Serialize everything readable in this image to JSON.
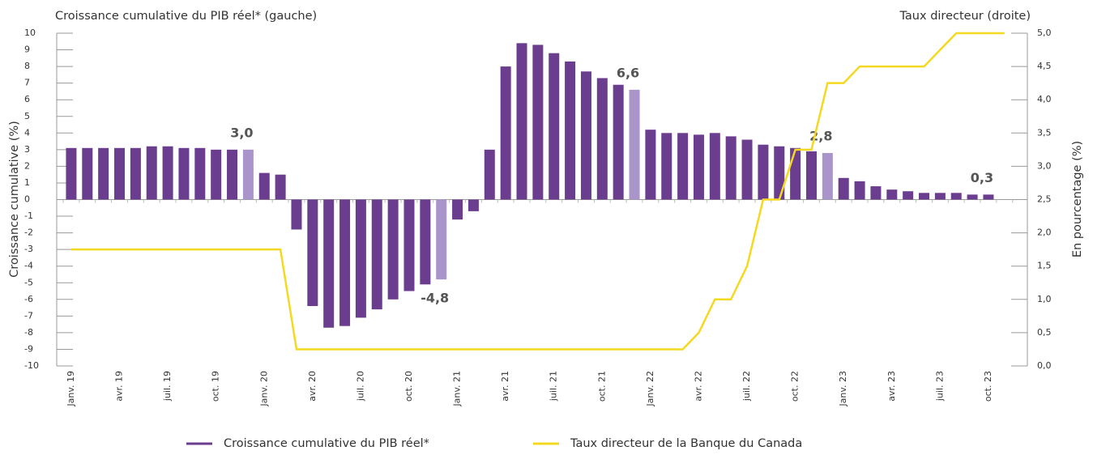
{
  "chart_data": {
    "type": "bar_line",
    "title_left": "Croissance cumulative du PIB réel* (gauche)",
    "title_right": "Taux directeur (droite)",
    "ylabel": "Croissance cumulative (%)",
    "y2label": "En pourcentage (%)",
    "categories": [
      "Janv. 19",
      null,
      null,
      "avr. 19",
      null,
      null,
      "juil. 19",
      null,
      null,
      "oct. 19",
      null,
      null,
      "Janv. 20",
      null,
      null,
      "avr. 20",
      null,
      null,
      "juil. 20",
      null,
      null,
      "oct. 20",
      null,
      null,
      "Janv. 21",
      null,
      null,
      "avr. 21",
      null,
      null,
      "juil. 21",
      null,
      null,
      "oct. 21",
      null,
      null,
      "Janv. 22",
      null,
      null,
      "avr. 22",
      null,
      null,
      "juil. 22",
      null,
      null,
      "oct. 22",
      null,
      null,
      "Janv. 23",
      null,
      null,
      "avr. 23",
      null,
      null,
      "juil. 23",
      null,
      null,
      "oct. 23",
      null,
      null
    ],
    "series": [
      {
        "name": "Croissance cumulative du PIB réel*",
        "kind": "bar",
        "color": "#6b3d8f",
        "values": [
          3.1,
          3.1,
          3.1,
          3.1,
          3.1,
          3.2,
          3.2,
          3.1,
          3.1,
          3.0,
          3.0,
          3.0,
          1.6,
          1.5,
          -1.8,
          -6.4,
          -7.7,
          -7.6,
          -7.1,
          -6.6,
          -6.0,
          -5.5,
          -5.1,
          -4.8,
          -1.2,
          -0.7,
          3.0,
          8.0,
          9.4,
          9.3,
          8.8,
          8.3,
          7.7,
          7.3,
          6.9,
          6.6,
          4.2,
          4.0,
          4.0,
          3.9,
          4.0,
          3.8,
          3.6,
          3.3,
          3.2,
          3.1,
          2.9,
          2.8,
          1.3,
          1.1,
          0.8,
          0.6,
          0.5,
          0.4,
          0.4,
          0.4,
          0.3,
          0.3,
          null,
          null
        ],
        "colors": [
          "#6b3d8f",
          "#6b3d8f",
          "#6b3d8f",
          "#6b3d8f",
          "#6b3d8f",
          "#6b3d8f",
          "#6b3d8f",
          "#6b3d8f",
          "#6b3d8f",
          "#6b3d8f",
          "#6b3d8f",
          "#a995c9",
          "#6b3d8f",
          "#6b3d8f",
          "#6b3d8f",
          "#6b3d8f",
          "#6b3d8f",
          "#6b3d8f",
          "#6b3d8f",
          "#6b3d8f",
          "#6b3d8f",
          "#6b3d8f",
          "#6b3d8f",
          "#a995c9",
          "#6b3d8f",
          "#6b3d8f",
          "#6b3d8f",
          "#6b3d8f",
          "#6b3d8f",
          "#6b3d8f",
          "#6b3d8f",
          "#6b3d8f",
          "#6b3d8f",
          "#6b3d8f",
          "#6b3d8f",
          "#a995c9",
          "#6b3d8f",
          "#6b3d8f",
          "#6b3d8f",
          "#6b3d8f",
          "#6b3d8f",
          "#6b3d8f",
          "#6b3d8f",
          "#6b3d8f",
          "#6b3d8f",
          "#6b3d8f",
          "#6b3d8f",
          "#a995c9",
          "#6b3d8f",
          "#6b3d8f",
          "#6b3d8f",
          "#6b3d8f",
          "#6b3d8f",
          "#6b3d8f",
          "#6b3d8f",
          "#6b3d8f",
          "#6b3d8f",
          "#6b3d8f",
          null,
          null
        ],
        "value_labels": [
          null,
          null,
          null,
          null,
          null,
          null,
          null,
          null,
          null,
          null,
          null,
          "3,0",
          null,
          null,
          null,
          null,
          null,
          null,
          null,
          null,
          null,
          null,
          null,
          "-4,8",
          null,
          null,
          null,
          null,
          null,
          null,
          null,
          null,
          null,
          null,
          null,
          "6,6",
          null,
          null,
          null,
          null,
          null,
          null,
          null,
          null,
          null,
          null,
          null,
          "2,8",
          null,
          null,
          null,
          null,
          null,
          null,
          null,
          null,
          null,
          "0,3",
          null,
          null
        ]
      },
      {
        "name": "Taux directeur de la Banque du Canada",
        "kind": "line",
        "axis": "y2",
        "color": "#f5d920",
        "values": [
          1.75,
          1.75,
          1.75,
          1.75,
          1.75,
          1.75,
          1.75,
          1.75,
          1.75,
          1.75,
          1.75,
          1.75,
          1.75,
          1.75,
          0.25,
          0.25,
          0.25,
          0.25,
          0.25,
          0.25,
          0.25,
          0.25,
          0.25,
          0.25,
          0.25,
          0.25,
          0.25,
          0.25,
          0.25,
          0.25,
          0.25,
          0.25,
          0.25,
          0.25,
          0.25,
          0.25,
          0.25,
          0.25,
          0.25,
          0.5,
          1.0,
          1.0,
          1.5,
          2.5,
          2.5,
          3.25,
          3.25,
          4.25,
          4.25,
          4.5,
          4.5,
          4.5,
          4.5,
          4.5,
          4.75,
          5.0,
          5.0,
          5.0,
          5.0,
          null
        ]
      }
    ],
    "ylim": [
      -10,
      10
    ],
    "yticks": [
      -10,
      -9,
      -8,
      -7,
      -6,
      -5,
      -4,
      -3,
      -2,
      -1,
      0,
      1,
      2,
      3,
      4,
      5,
      6,
      7,
      8,
      9,
      10
    ],
    "y2lim": [
      0,
      5
    ],
    "y2ticks": [
      {
        "value": 0,
        "label": "0,0"
      },
      {
        "value": 0.5,
        "label": "0,5"
      },
      {
        "value": 1,
        "label": "1,0"
      },
      {
        "value": 1.5,
        "label": "1,5"
      },
      {
        "value": 2,
        "label": "2,0"
      },
      {
        "value": 2.5,
        "label": "2,5"
      },
      {
        "value": 3,
        "label": "3,0"
      },
      {
        "value": 3.5,
        "label": "3,5"
      },
      {
        "value": 4,
        "label": "4,0"
      },
      {
        "value": 4.5,
        "label": "4,5"
      },
      {
        "value": 5,
        "label": "5,0"
      }
    ],
    "legend": "bottom"
  }
}
